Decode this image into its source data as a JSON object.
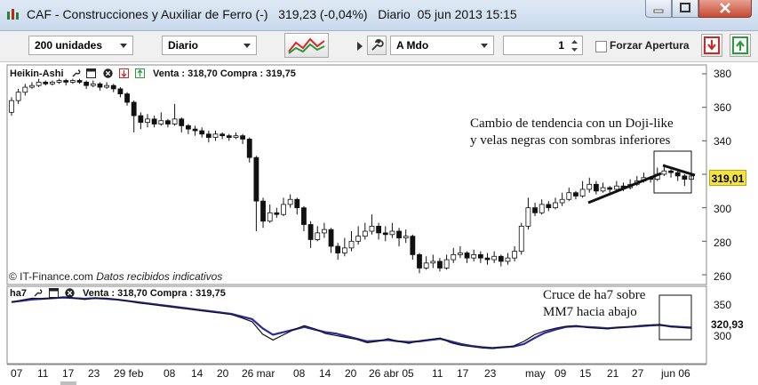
{
  "window": {
    "title": "CAF - Construcciones y Auxiliar de Ferro (-)   319,23 (-0,04%)   Diario  05 jun 2013 15:15"
  },
  "toolbar": {
    "units_select": "200 unidades",
    "period_select": "Diario",
    "order_type_select": "A Mdo",
    "quantity_value": "1",
    "force_open_label": "Forzar Apertura"
  },
  "main_chart": {
    "header_title": "Heikin-Ashi",
    "header_quote": "Venta : 318,70 Compra : 319,75",
    "y_ticks": [
      "380",
      "360",
      "340",
      "320",
      "300",
      "280",
      "260"
    ],
    "current_price": "319,01",
    "annotation_line1": "Cambio de tendencia con un Doji-like",
    "annotation_line2": "y velas negras con sombras inferiores",
    "credit": "© IT-Finance.com",
    "credit_note": "Datos recibidos indicativos"
  },
  "indicator": {
    "header_title": "ha7",
    "header_quote": "Venta : 318,70 Compra : 319,75",
    "y_ticks": [
      "350",
      "300"
    ],
    "current_value": "320,93",
    "annotation_line1": "Cruce de ha7 sobre",
    "annotation_line2": "MM7 hacia abajo"
  },
  "x_axis": {
    "labels": [
      "07",
      "11",
      "17",
      "23",
      "29 feb",
      "08",
      "14",
      "20",
      "26 mar",
      "08",
      "14",
      "20",
      "26 abr 05",
      "11",
      "17",
      "23",
      "may",
      "09",
      "15",
      "21",
      "27",
      "jun 06"
    ]
  },
  "chart_data": {
    "type": "candlestick",
    "y_range": [
      258,
      384
    ],
    "candles": [
      {
        "o": 357,
        "c": 364,
        "h": 366,
        "l": 355
      },
      {
        "o": 364,
        "c": 369,
        "h": 371,
        "l": 362
      },
      {
        "o": 369,
        "c": 372,
        "h": 374,
        "l": 367
      },
      {
        "o": 372,
        "c": 373,
        "h": 375,
        "l": 371
      },
      {
        "o": 373,
        "c": 375,
        "h": 377,
        "l": 372
      },
      {
        "o": 375,
        "c": 374,
        "h": 376,
        "l": 373
      },
      {
        "o": 374,
        "c": 375,
        "h": 376,
        "l": 373
      },
      {
        "o": 375,
        "c": 376,
        "h": 377,
        "l": 374
      },
      {
        "o": 376,
        "c": 375,
        "h": 377,
        "l": 373
      },
      {
        "o": 375,
        "c": 376,
        "h": 377,
        "l": 374
      },
      {
        "o": 376,
        "c": 375,
        "h": 377,
        "l": 374
      },
      {
        "o": 375,
        "c": 373,
        "h": 376,
        "l": 371
      },
      {
        "o": 373,
        "c": 374,
        "h": 376,
        "l": 372
      },
      {
        "o": 374,
        "c": 372,
        "h": 375,
        "l": 370
      },
      {
        "o": 372,
        "c": 373,
        "h": 375,
        "l": 371
      },
      {
        "o": 373,
        "c": 371,
        "h": 374,
        "l": 369
      },
      {
        "o": 371,
        "c": 368,
        "h": 372,
        "l": 366
      },
      {
        "o": 368,
        "c": 363,
        "h": 369,
        "l": 361
      },
      {
        "o": 363,
        "c": 355,
        "h": 364,
        "l": 345
      },
      {
        "o": 355,
        "c": 351,
        "h": 357,
        "l": 347
      },
      {
        "o": 351,
        "c": 353,
        "h": 356,
        "l": 348
      },
      {
        "o": 353,
        "c": 350,
        "h": 355,
        "l": 348
      },
      {
        "o": 350,
        "c": 352,
        "h": 357,
        "l": 349
      },
      {
        "o": 352,
        "c": 350,
        "h": 353,
        "l": 348
      },
      {
        "o": 350,
        "c": 353,
        "h": 362,
        "l": 349
      },
      {
        "o": 353,
        "c": 349,
        "h": 354,
        "l": 345
      },
      {
        "o": 349,
        "c": 347,
        "h": 350,
        "l": 344
      },
      {
        "o": 347,
        "c": 346,
        "h": 349,
        "l": 343
      },
      {
        "o": 346,
        "c": 344,
        "h": 348,
        "l": 342
      },
      {
        "o": 344,
        "c": 342,
        "h": 346,
        "l": 339
      },
      {
        "o": 342,
        "c": 344,
        "h": 346,
        "l": 340
      },
      {
        "o": 344,
        "c": 343,
        "h": 345,
        "l": 341
      },
      {
        "o": 343,
        "c": 342,
        "h": 344,
        "l": 340
      },
      {
        "o": 342,
        "c": 343,
        "h": 345,
        "l": 341
      },
      {
        "o": 343,
        "c": 341,
        "h": 344,
        "l": 338
      },
      {
        "o": 341,
        "c": 330,
        "h": 342,
        "l": 327
      },
      {
        "o": 330,
        "c": 304,
        "h": 331,
        "l": 286
      },
      {
        "o": 304,
        "c": 292,
        "h": 306,
        "l": 288
      },
      {
        "o": 292,
        "c": 297,
        "h": 302,
        "l": 291
      },
      {
        "o": 297,
        "c": 296,
        "h": 300,
        "l": 294
      },
      {
        "o": 296,
        "c": 302,
        "h": 306,
        "l": 295
      },
      {
        "o": 302,
        "c": 305,
        "h": 308,
        "l": 300
      },
      {
        "o": 305,
        "c": 300,
        "h": 306,
        "l": 296
      },
      {
        "o": 300,
        "c": 290,
        "h": 301,
        "l": 286
      },
      {
        "o": 290,
        "c": 281,
        "h": 292,
        "l": 276
      },
      {
        "o": 281,
        "c": 285,
        "h": 289,
        "l": 280
      },
      {
        "o": 285,
        "c": 287,
        "h": 291,
        "l": 282
      },
      {
        "o": 287,
        "c": 277,
        "h": 288,
        "l": 273
      },
      {
        "o": 277,
        "c": 273,
        "h": 279,
        "l": 269
      },
      {
        "o": 273,
        "c": 276,
        "h": 282,
        "l": 271
      },
      {
        "o": 276,
        "c": 280,
        "h": 286,
        "l": 274
      },
      {
        "o": 280,
        "c": 283,
        "h": 289,
        "l": 278
      },
      {
        "o": 283,
        "c": 286,
        "h": 291,
        "l": 281
      },
      {
        "o": 286,
        "c": 289,
        "h": 296,
        "l": 284
      },
      {
        "o": 289,
        "c": 285,
        "h": 291,
        "l": 281
      },
      {
        "o": 285,
        "c": 284,
        "h": 289,
        "l": 280
      },
      {
        "o": 284,
        "c": 286,
        "h": 291,
        "l": 282
      },
      {
        "o": 286,
        "c": 282,
        "h": 288,
        "l": 277
      },
      {
        "o": 282,
        "c": 283,
        "h": 287,
        "l": 279
      },
      {
        "o": 283,
        "c": 272,
        "h": 284,
        "l": 269
      },
      {
        "o": 272,
        "c": 264,
        "h": 273,
        "l": 261
      },
      {
        "o": 264,
        "c": 267,
        "h": 271,
        "l": 263
      },
      {
        "o": 267,
        "c": 268,
        "h": 272,
        "l": 264
      },
      {
        "o": 268,
        "c": 264,
        "h": 270,
        "l": 262
      },
      {
        "o": 264,
        "c": 269,
        "h": 272,
        "l": 263
      },
      {
        "o": 269,
        "c": 272,
        "h": 276,
        "l": 267
      },
      {
        "o": 272,
        "c": 273,
        "h": 277,
        "l": 270
      },
      {
        "o": 273,
        "c": 270,
        "h": 274,
        "l": 267
      },
      {
        "o": 270,
        "c": 272,
        "h": 275,
        "l": 268
      },
      {
        "o": 272,
        "c": 270,
        "h": 274,
        "l": 267
      },
      {
        "o": 270,
        "c": 269,
        "h": 273,
        "l": 266
      },
      {
        "o": 269,
        "c": 271,
        "h": 274,
        "l": 267
      },
      {
        "o": 271,
        "c": 268,
        "h": 272,
        "l": 265
      },
      {
        "o": 268,
        "c": 270,
        "h": 273,
        "l": 266
      },
      {
        "o": 270,
        "c": 274,
        "h": 277,
        "l": 268
      },
      {
        "o": 274,
        "c": 289,
        "h": 291,
        "l": 272
      },
      {
        "o": 289,
        "c": 300,
        "h": 306,
        "l": 287
      },
      {
        "o": 300,
        "c": 297,
        "h": 303,
        "l": 295
      },
      {
        "o": 297,
        "c": 302,
        "h": 305,
        "l": 296
      },
      {
        "o": 302,
        "c": 300,
        "h": 304,
        "l": 298
      },
      {
        "o": 300,
        "c": 303,
        "h": 306,
        "l": 299
      },
      {
        "o": 303,
        "c": 305,
        "h": 309,
        "l": 301
      },
      {
        "o": 305,
        "c": 309,
        "h": 312,
        "l": 304
      },
      {
        "o": 309,
        "c": 307,
        "h": 310,
        "l": 305
      },
      {
        "o": 307,
        "c": 311,
        "h": 316,
        "l": 306
      },
      {
        "o": 311,
        "c": 314,
        "h": 318,
        "l": 309
      },
      {
        "o": 314,
        "c": 310,
        "h": 316,
        "l": 308
      },
      {
        "o": 310,
        "c": 312,
        "h": 315,
        "l": 309
      },
      {
        "o": 312,
        "c": 311,
        "h": 313,
        "l": 309
      },
      {
        "o": 311,
        "c": 313,
        "h": 316,
        "l": 310
      },
      {
        "o": 313,
        "c": 312,
        "h": 315,
        "l": 310
      },
      {
        "o": 312,
        "c": 314,
        "h": 317,
        "l": 311
      },
      {
        "o": 314,
        "c": 316,
        "h": 319,
        "l": 313
      },
      {
        "o": 316,
        "c": 318,
        "h": 321,
        "l": 315
      },
      {
        "o": 318,
        "c": 317,
        "h": 319,
        "l": 315
      },
      {
        "o": 317,
        "c": 320,
        "h": 324,
        "l": 316
      },
      {
        "o": 320,
        "c": 322,
        "h": 326,
        "l": 319
      },
      {
        "o": 322,
        "c": 321,
        "h": 323,
        "l": 318
      },
      {
        "o": 321,
        "c": 319,
        "h": 322,
        "l": 316
      },
      {
        "o": 319,
        "c": 317,
        "h": 320,
        "l": 313
      },
      {
        "o": 317,
        "c": 319,
        "h": 322,
        "l": 314
      }
    ],
    "indicator": {
      "y_range": [
        270,
        380
      ],
      "series": [
        {
          "values": [
            360,
            362,
            364,
            365,
            366,
            367,
            366,
            365,
            366,
            365,
            364,
            362,
            360,
            358,
            356,
            354,
            352,
            350,
            348,
            346,
            344,
            342,
            338,
            334,
            320,
            310,
            314,
            318,
            322,
            318,
            314,
            312,
            308,
            304,
            300,
            301,
            302,
            300,
            299,
            300,
            302,
            304,
            300,
            296,
            293,
            291,
            290,
            291,
            292,
            296,
            305,
            313,
            318,
            322,
            323,
            322,
            321,
            320,
            321,
            322,
            323,
            324,
            325,
            323,
            322,
            321
          ]
        },
        {
          "values": [
            360,
            363,
            366,
            365,
            366,
            368,
            366,
            364,
            366,
            366,
            364,
            362,
            359,
            357,
            355,
            353,
            351,
            349,
            347,
            345,
            343,
            341,
            336,
            330,
            311,
            302,
            310,
            318,
            324,
            319,
            312,
            309,
            306,
            303,
            298,
            300,
            304,
            300,
            297,
            301,
            303,
            305,
            298,
            294,
            292,
            290,
            289,
            291,
            293,
            300,
            310,
            316,
            320,
            323,
            324,
            321,
            320,
            319,
            321,
            322,
            324,
            325,
            326,
            322,
            321,
            320
          ]
        }
      ]
    }
  }
}
